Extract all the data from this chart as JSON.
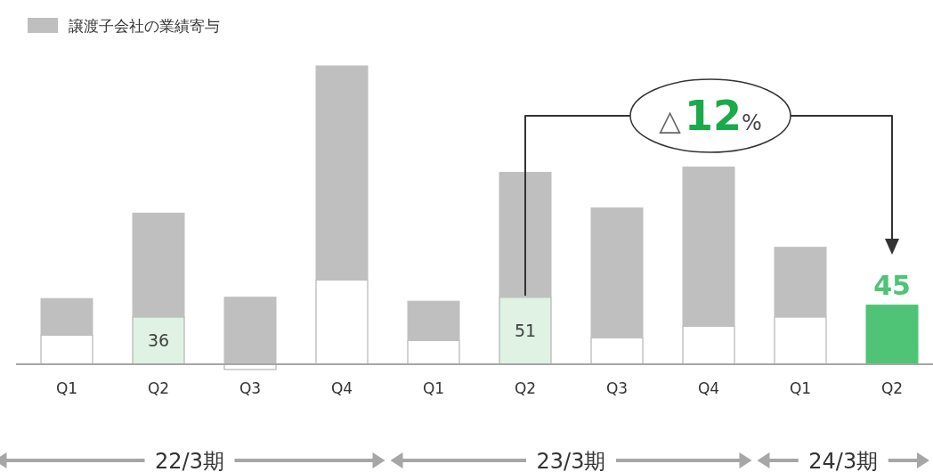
{
  "chart_data": {
    "type": "bar",
    "stacked": true,
    "legend": "top left",
    "categories": [
      "Q1",
      "Q2",
      "Q3",
      "Q4",
      "Q1",
      "Q2",
      "Q3",
      "Q4",
      "Q1",
      "Q2"
    ],
    "series": [
      {
        "colors": [
          "#ffffff",
          "#dff2e4",
          "#ffffff",
          "#ffffff",
          "#ffffff",
          "#dff2e4",
          "#ffffff",
          "#ffffff",
          "#ffffff",
          "#4fc477"
        ],
        "values": [
          22,
          36,
          -4,
          64,
          18,
          51,
          20,
          29,
          36,
          45
        ],
        "value_labels": [
          null,
          "36",
          null,
          null,
          null,
          "51",
          null,
          null,
          null,
          "45"
        ]
      },
      {
        "name": "譲渡子会社の業績寄与",
        "color": "#bfbfbf",
        "values": [
          28,
          79,
          51,
          163,
          30,
          95,
          99,
          121,
          53,
          0
        ]
      }
    ],
    "annotations": [
      "△12%",
      "22/3期",
      "23/3期",
      "24/3期"
    ]
  }
}
